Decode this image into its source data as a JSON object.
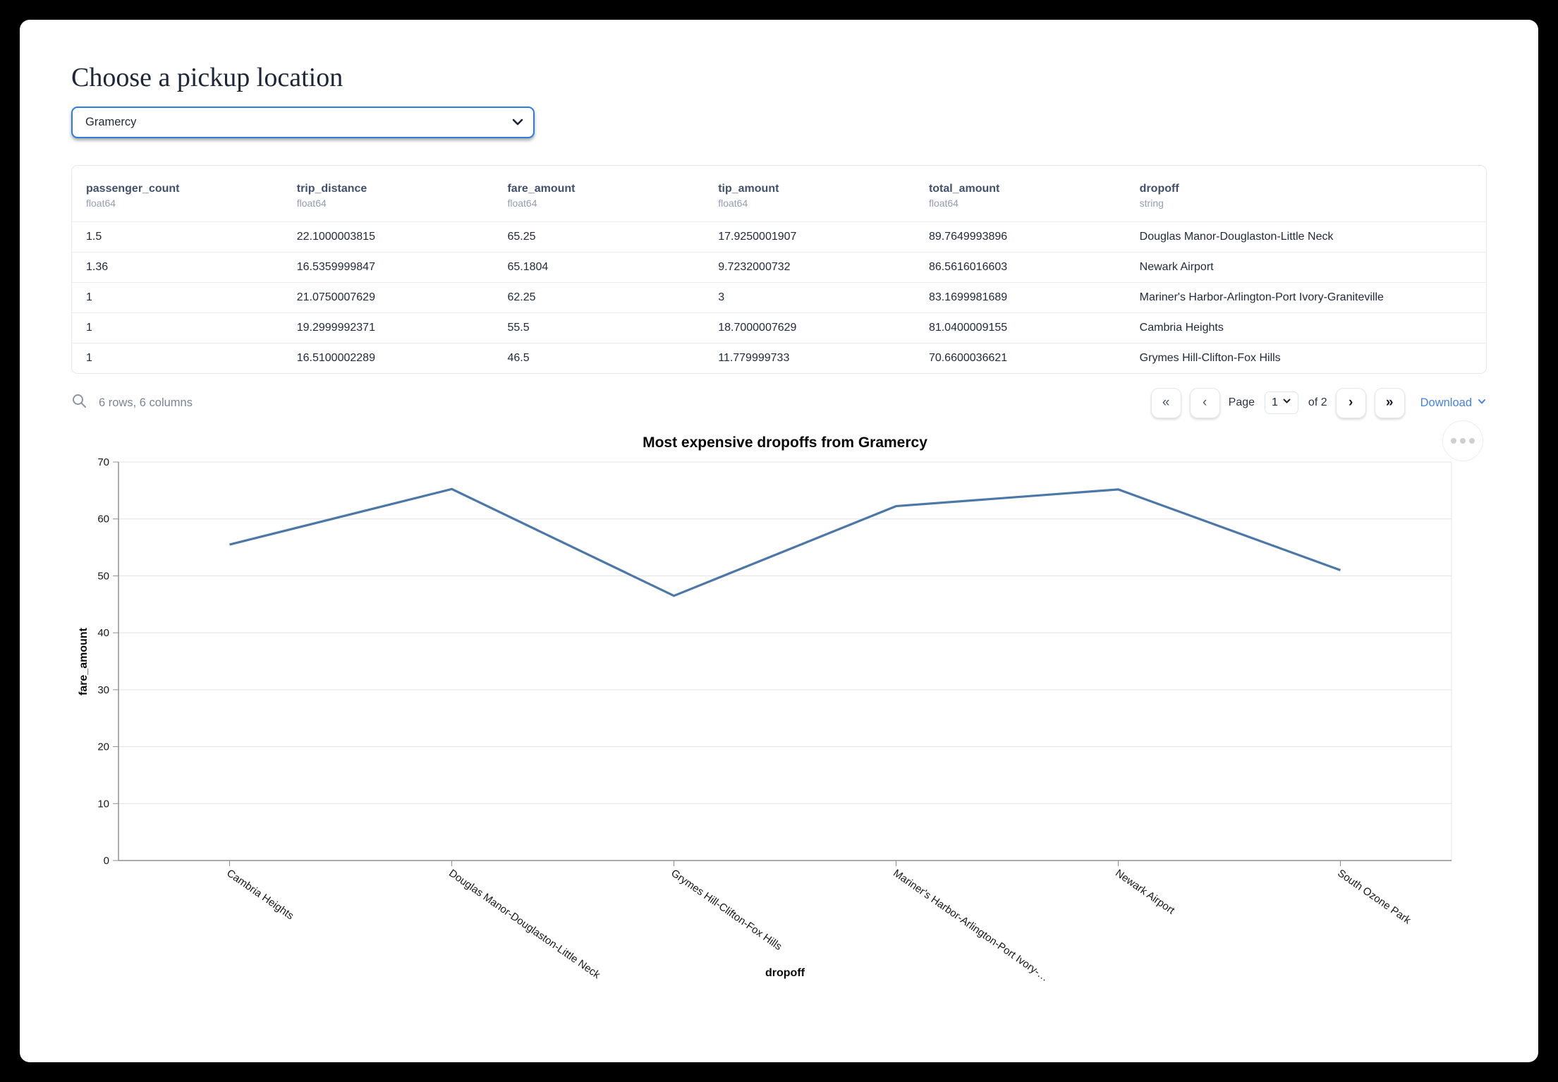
{
  "page": {
    "title": "Choose a pickup location"
  },
  "pickup_select": {
    "value": "Gramercy"
  },
  "table": {
    "columns": [
      {
        "name": "passenger_count",
        "dtype": "float64"
      },
      {
        "name": "trip_distance",
        "dtype": "float64"
      },
      {
        "name": "fare_amount",
        "dtype": "float64"
      },
      {
        "name": "tip_amount",
        "dtype": "float64"
      },
      {
        "name": "total_amount",
        "dtype": "float64"
      },
      {
        "name": "dropoff",
        "dtype": "string"
      }
    ],
    "rows": [
      [
        "1.5",
        "22.1000003815",
        "65.25",
        "17.9250001907",
        "89.7649993896",
        "Douglas Manor-Douglaston-Little Neck"
      ],
      [
        "1.36",
        "16.5359999847",
        "65.1804",
        "9.7232000732",
        "86.5616016603",
        "Newark Airport"
      ],
      [
        "1",
        "21.0750007629",
        "62.25",
        "3",
        "83.1699981689",
        "Mariner's Harbor-Arlington-Port Ivory-Graniteville"
      ],
      [
        "1",
        "19.2999992371",
        "55.5",
        "18.7000007629",
        "81.0400009155",
        "Cambria Heights"
      ],
      [
        "1",
        "16.5100002289",
        "46.5",
        "11.779999733",
        "70.6600036621",
        "Grymes Hill-Clifton-Fox Hills"
      ]
    ],
    "summary": "6 rows, 6 columns"
  },
  "pagination": {
    "page_label": "Page",
    "current_page": "1",
    "of_label": "of 2",
    "download_label": "Download",
    "first_icon": "«",
    "prev_icon": "‹",
    "next_icon": "›",
    "last_icon": "»"
  },
  "chart_data": {
    "type": "line",
    "title": "Most expensive dropoffs from Gramercy",
    "xlabel": "dropoff",
    "ylabel": "fare_amount",
    "categories": [
      "Cambria Heights",
      "Douglas Manor-Douglaston-Little Neck",
      "Grymes Hill-Clifton-Fox Hills",
      "Mariner's Harbor-Arlington-Port Ivory-Graniteville",
      "Newark Airport",
      "South Ozone Park"
    ],
    "xtick_labels": [
      "Cambria Heights",
      "Douglas Manor-Douglaston-Little Neck",
      "Grymes Hill-Clifton-Fox Hills",
      "Mariner's Harbor-Arlington-Port Ivory-…",
      "Newark Airport",
      "South Ozone Park"
    ],
    "values": [
      55.5,
      65.25,
      46.5,
      62.25,
      65.1804,
      51
    ],
    "ylim": [
      0,
      70
    ],
    "yticks": [
      0,
      10,
      20,
      30,
      40,
      50,
      60,
      70
    ],
    "grid": true,
    "legend": "none",
    "line_color": "#4c78a8"
  },
  "colors": {
    "select_border": "#2a7de1",
    "link": "#4583e2"
  }
}
